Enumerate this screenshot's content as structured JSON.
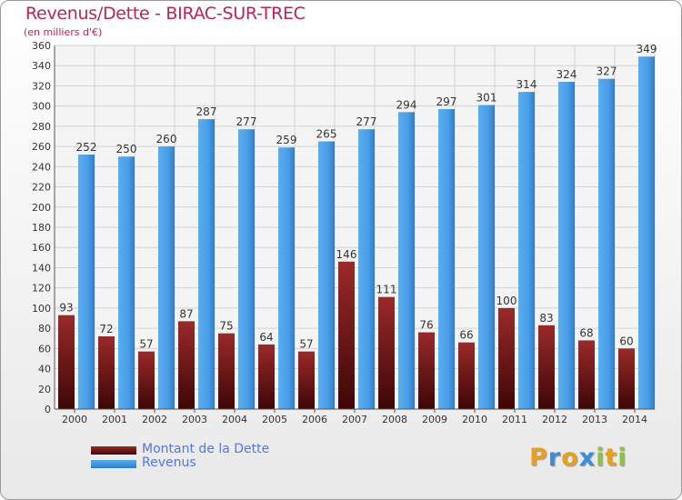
{
  "header": {
    "title": "Revenus/Dette - BIRAC-SUR-TREC",
    "subtitle": "(en milliers d'€)"
  },
  "chart_data": {
    "type": "bar",
    "categories": [
      "2000",
      "2001",
      "2002",
      "2003",
      "2004",
      "2005",
      "2006",
      "2007",
      "2008",
      "2009",
      "2010",
      "2011",
      "2012",
      "2013",
      "2014"
    ],
    "series": [
      {
        "name": "Montant de la Dette",
        "color": "#7a1515",
        "values": [
          93,
          72,
          57,
          87,
          75,
          64,
          57,
          146,
          111,
          76,
          66,
          100,
          83,
          68,
          60
        ]
      },
      {
        "name": "Revenus",
        "color": "#4a9ee6",
        "values": [
          252,
          250,
          260,
          287,
          277,
          259,
          265,
          277,
          294,
          297,
          301,
          314,
          324,
          327,
          349
        ]
      }
    ],
    "ylim": [
      0,
      360
    ],
    "ytick_step": 20,
    "grid": true,
    "legend_position": "bottom-left"
  },
  "branding": {
    "logo_letters": [
      "P",
      "r",
      "o",
      "x",
      "i",
      "t",
      "i"
    ],
    "logo_colors": [
      "#e8a020",
      "#3a8fd8",
      "#e8a020",
      "#3a8fd8",
      "#8cc43c",
      "#e8a020",
      "#8cc43c"
    ]
  }
}
